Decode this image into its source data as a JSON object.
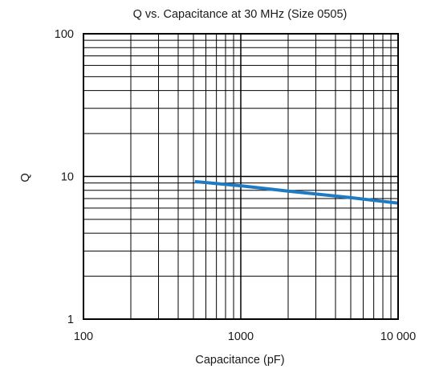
{
  "chart_data": {
    "type": "line",
    "title": "Q vs. Capacitance at 30 MHz (Size 0505)",
    "xlabel": "Capacitance (pF)",
    "ylabel": "Q",
    "x_scale": "log",
    "y_scale": "log",
    "xlim": [
      100,
      10000
    ],
    "ylim": [
      1,
      100
    ],
    "x_ticks": [
      100,
      1000,
      10000
    ],
    "x_tick_labels": [
      "100",
      "1000",
      "10 000"
    ],
    "y_ticks": [
      1,
      10,
      100
    ],
    "y_tick_labels": [
      "1",
      "10",
      "100"
    ],
    "grid": true,
    "line_color": "#1f7bc1",
    "series": [
      {
        "x": [
          510,
          1000,
          2000,
          5000,
          10000
        ],
        "y": [
          9.2,
          8.6,
          7.9,
          7.1,
          6.5
        ]
      }
    ]
  }
}
